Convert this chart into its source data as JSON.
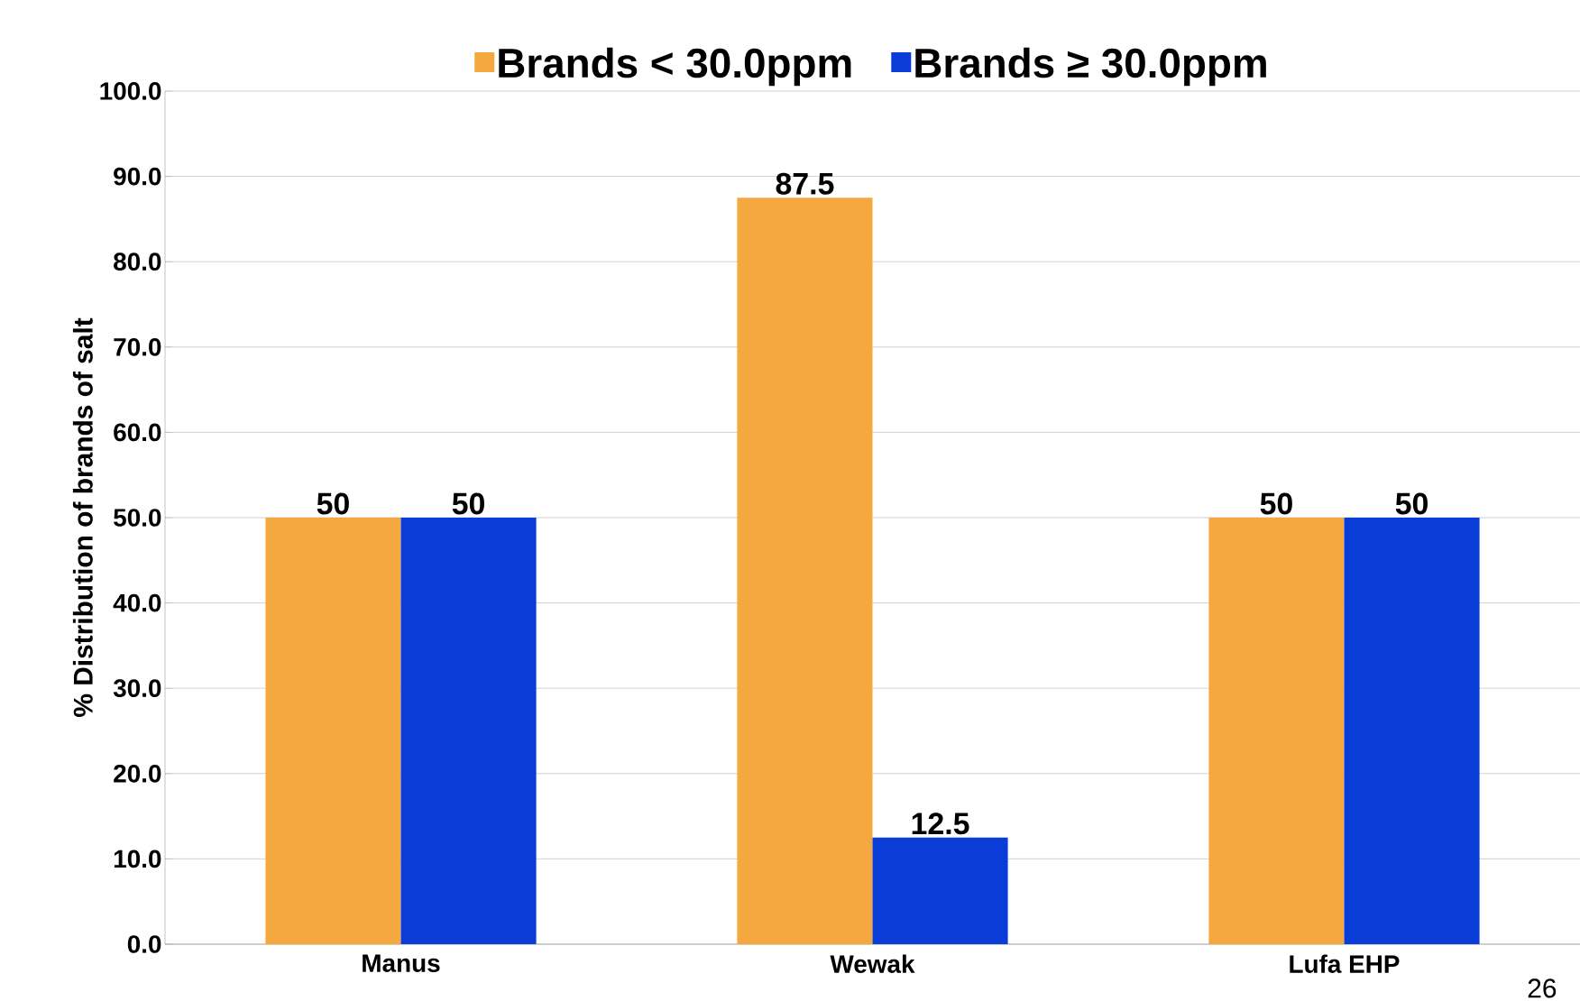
{
  "chart_data": {
    "type": "bar",
    "ylabel": "% Distribution of brands of salt",
    "categories": [
      "Manus",
      "Wewak",
      "Lufa EHP"
    ],
    "series": [
      {
        "name": "Brands < 30.0ppm",
        "color": "#f5a840",
        "values": [
          50,
          87.5,
          50
        ],
        "value_labels": [
          "50",
          "87.5",
          "50"
        ]
      },
      {
        "name": "Brands ≥ 30.0ppm",
        "color": "#0a3cd8",
        "values": [
          50,
          12.5,
          50
        ],
        "value_labels": [
          "50",
          "12.5",
          "50"
        ]
      }
    ],
    "ylim": [
      0,
      100
    ],
    "yticks": [
      {
        "value": 0,
        "label": "0.0"
      },
      {
        "value": 10,
        "label": "10.0"
      },
      {
        "value": 20,
        "label": "20.0"
      },
      {
        "value": 30,
        "label": "30.0"
      },
      {
        "value": 40,
        "label": "40.0"
      },
      {
        "value": 50,
        "label": "50.0"
      },
      {
        "value": 60,
        "label": "60.0"
      },
      {
        "value": 70,
        "label": "70.0"
      },
      {
        "value": 80,
        "label": "80.0"
      },
      {
        "value": 90,
        "label": "90.0"
      },
      {
        "value": 100,
        "label": "100.0"
      }
    ],
    "grid": "y",
    "legend": "top",
    "annotations": [
      "26"
    ]
  }
}
